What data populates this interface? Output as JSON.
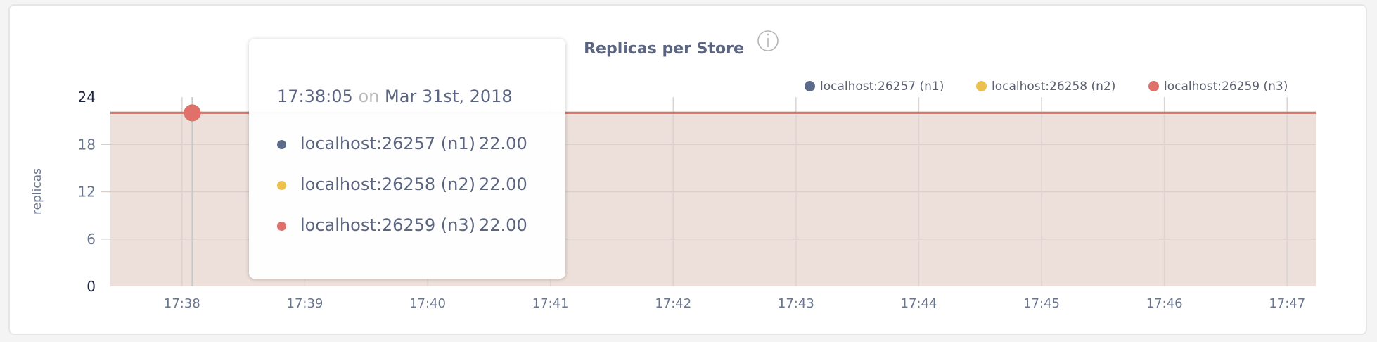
{
  "chart_data": {
    "type": "area",
    "title": "Replicas per Store",
    "info_icon": "info-circle-icon",
    "ylabel": "replicas",
    "xlabel": "",
    "ylim": [
      0,
      24
    ],
    "yticks": [
      "0",
      "6",
      "12",
      "18",
      "24"
    ],
    "xlim": [
      "17:37:25",
      "17:47:14"
    ],
    "xticks": [
      "17:38",
      "17:39",
      "17:40",
      "17:41",
      "17:42",
      "17:43",
      "17:44",
      "17:45",
      "17:46",
      "17:47"
    ],
    "grid": true,
    "legend_position": "top-right",
    "x": [
      "17:37:25",
      "17:38:05",
      "17:39:00",
      "17:40:00",
      "17:41:00",
      "17:42:00",
      "17:43:00",
      "17:44:00",
      "17:45:00",
      "17:46:00",
      "17:47:00",
      "17:47:14"
    ],
    "series": [
      {
        "name": "localhost:26257 (n1)",
        "color": "#5d6b8a",
        "values": [
          22,
          22,
          22,
          22,
          22,
          22,
          22,
          22,
          22,
          22,
          22,
          22
        ]
      },
      {
        "name": "localhost:26258 (n2)",
        "color": "#ebc14b",
        "values": [
          22,
          22,
          22,
          22,
          22,
          22,
          22,
          22,
          22,
          22,
          22,
          22
        ]
      },
      {
        "name": "localhost:26259 (n3)",
        "color": "#e0706a",
        "values": [
          22,
          22,
          22,
          22,
          22,
          22,
          22,
          22,
          22,
          22,
          22,
          22
        ]
      }
    ],
    "fill_color": "#ede0da",
    "tooltip": {
      "time": "17:38:05",
      "on": "on",
      "date": "Mar 31st, 2018",
      "rows": [
        {
          "label": "localhost:26257 (n1)",
          "value": "22.00"
        },
        {
          "label": "localhost:26258 (n2)",
          "value": "22.00"
        },
        {
          "label": "localhost:26259 (n3)",
          "value": "22.00"
        }
      ]
    }
  }
}
